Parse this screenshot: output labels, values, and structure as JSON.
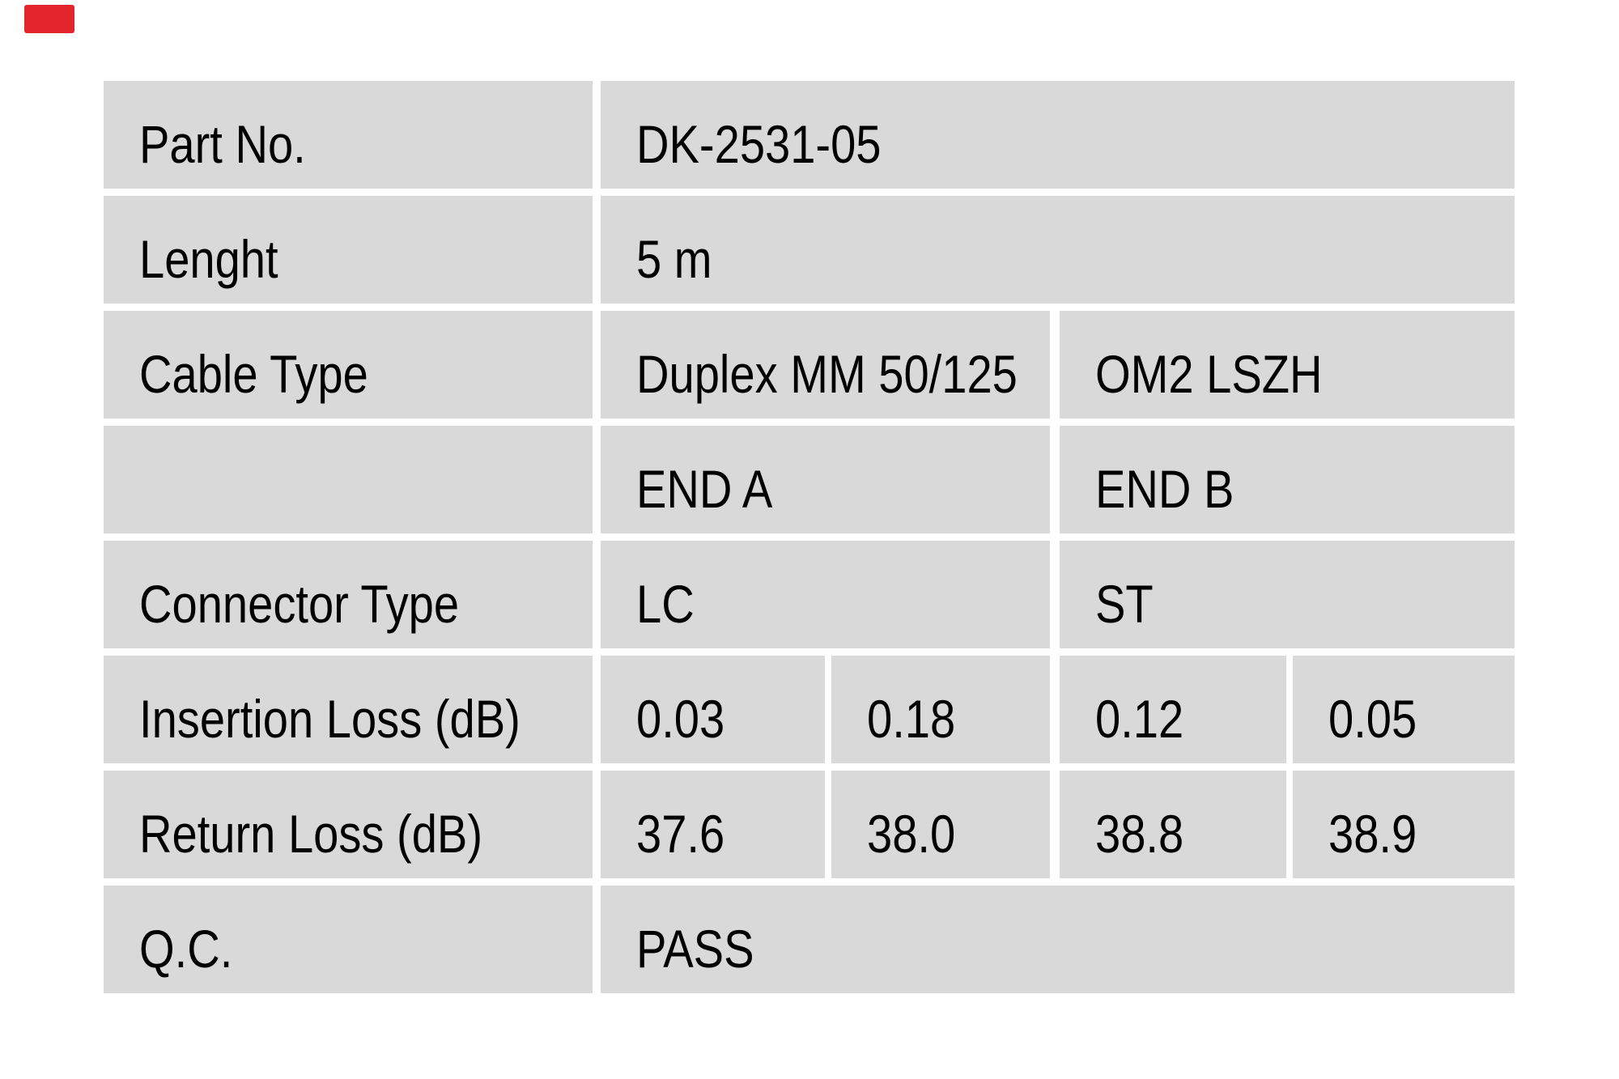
{
  "marker": {
    "color": "#e2262b"
  },
  "table": {
    "cell_bg": "#d9d9d9",
    "rows": [
      {
        "label": "Part No.",
        "value": "DK-2531-05"
      },
      {
        "label": "Lenght",
        "value": "5 m"
      },
      {
        "label": "Cable Type",
        "end_a": "Duplex MM 50/125",
        "end_b": "OM2 LSZH"
      },
      {
        "label": "",
        "end_a": "END A",
        "end_b": "END B"
      },
      {
        "label": "Connector Type",
        "end_a": "LC",
        "end_b": "ST"
      },
      {
        "label": "Insertion Loss (dB)",
        "values": [
          "0.03",
          "0.18",
          "0.12",
          "0.05"
        ]
      },
      {
        "label": "Return Loss (dB)",
        "values": [
          "37.6",
          "38.0",
          "38.8",
          "38.9"
        ]
      },
      {
        "label": "Q.C.",
        "value": "PASS"
      }
    ]
  }
}
